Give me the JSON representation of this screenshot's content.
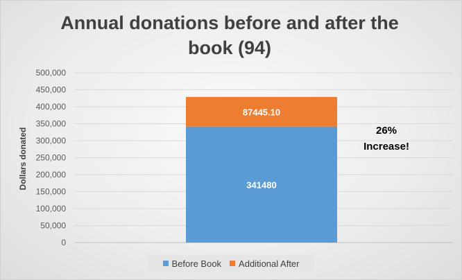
{
  "chart_data": {
    "type": "bar",
    "stacked": true,
    "title": "Annual donations before and after the\nbook (94)",
    "ylabel": "Dollars donated",
    "xlabel": "",
    "categories": [
      ""
    ],
    "ylim": [
      0,
      500000
    ],
    "yticks": [
      "0",
      "50,000",
      "100,000",
      "150,000",
      "200,000",
      "250,000",
      "300,000",
      "350,000",
      "400,000",
      "450,000",
      "500,000"
    ],
    "grid": true,
    "legend_position": "bottom",
    "series": [
      {
        "name": "Before Book",
        "values": [
          341480
        ],
        "label": "341480",
        "color": "#5b9bd5"
      },
      {
        "name": "Additional After",
        "values": [
          87445.1
        ],
        "label": "87445.10",
        "color": "#ed7d31"
      }
    ],
    "annotation": "26%\nIncrease!"
  }
}
